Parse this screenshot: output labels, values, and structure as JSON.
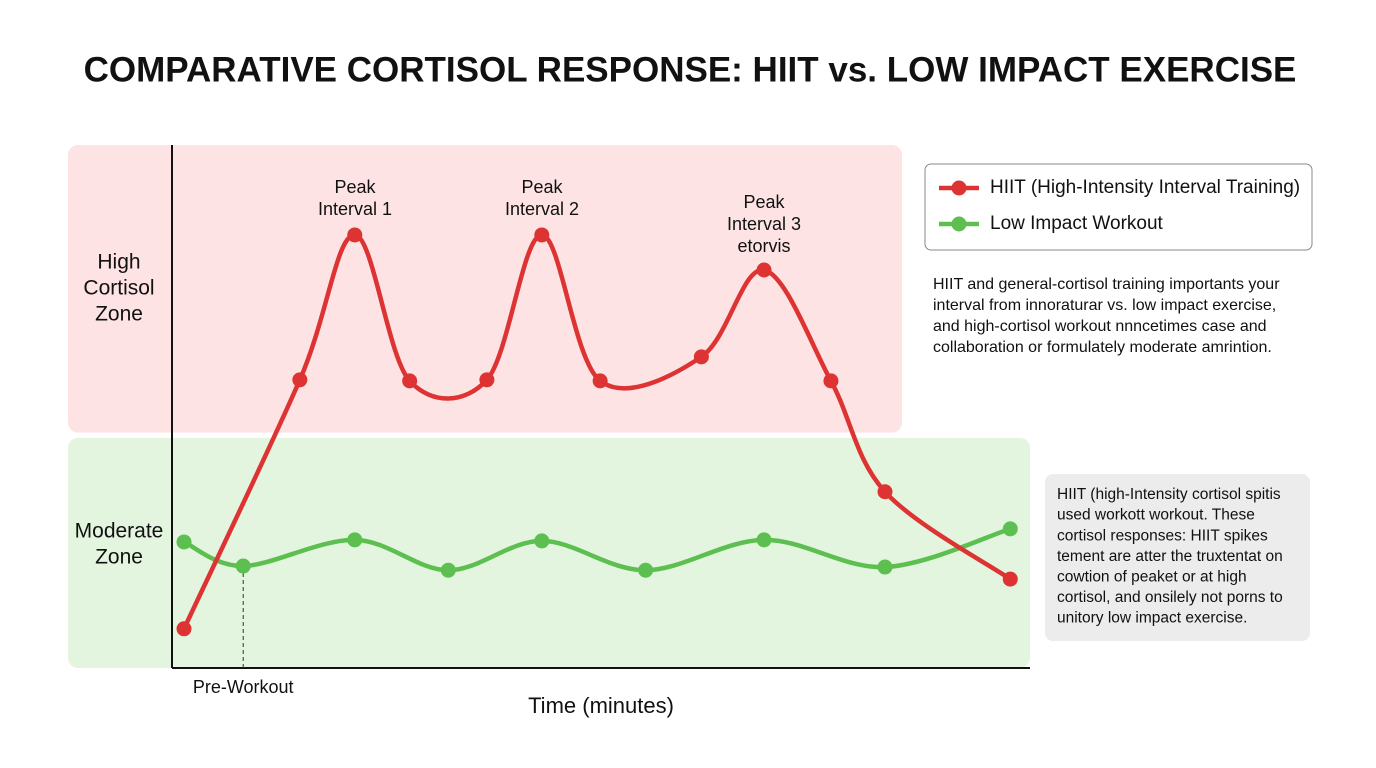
{
  "chart_data": {
    "type": "line",
    "title": "COMPARATIVE CORTISOL RESPONSE: HIIT vs. LOW IMPACT EXERCISE",
    "x_label": "Time (minutes)",
    "xlim": [
      0,
      100
    ],
    "ylim": [
      0,
      100
    ],
    "xticks": [
      {
        "value": 8.3,
        "label": "Pre-Workout"
      }
    ],
    "zones": [
      {
        "label": [
          "High",
          "Cortisol",
          "Zone"
        ],
        "range": [
          45,
          100
        ],
        "color": "#fde3e3"
      },
      {
        "label": [
          "Moderate",
          "Zone"
        ],
        "range": [
          0,
          44
        ],
        "color": "#e3f5df"
      }
    ],
    "series": [
      {
        "name": "HIIT (High-Intensity Interval Training)",
        "color": "#dd3333",
        "x": [
          1.4,
          14.9,
          21.3,
          27.7,
          36.7,
          43.1,
          49.9,
          61.7,
          69.0,
          76.8,
          83.1,
          97.7
        ],
        "values": [
          7.5,
          55.1,
          82.8,
          54.9,
          55.1,
          82.8,
          54.9,
          59.5,
          76.1,
          54.9,
          33.7,
          17.0
        ]
      },
      {
        "name": "Low Impact Workout",
        "color": "#5cbf4f",
        "x": [
          1.4,
          8.3,
          21.3,
          32.2,
          43.1,
          55.2,
          69.0,
          83.1,
          97.7
        ],
        "values": [
          24.1,
          19.5,
          24.5,
          18.7,
          24.3,
          18.7,
          24.5,
          19.3,
          26.6
        ]
      }
    ],
    "annotations": [
      [
        "Peak",
        "Interval 1"
      ],
      [
        "Peak",
        "Interval 2"
      ],
      [
        "Peak",
        "Interval 3",
        "etorvis"
      ]
    ],
    "notes": [
      [
        "HIIT and general-cortisol training importants your",
        "interval from innoraturar vs. low impact exercise,",
        "and high-cortisol workout nnncetimes case and",
        "collaboration or formulately moderate amrintion."
      ],
      [
        "HIIT (high-Intensity cortisol spitis",
        "used workott workout. These",
        "cortisol responses: HIIT spikes",
        "tement are atter the truxtentat on",
        "cowtion of peaket or at high",
        "cortisol, and onsilely not porns to",
        "unitory low impact exercise."
      ]
    ]
  }
}
